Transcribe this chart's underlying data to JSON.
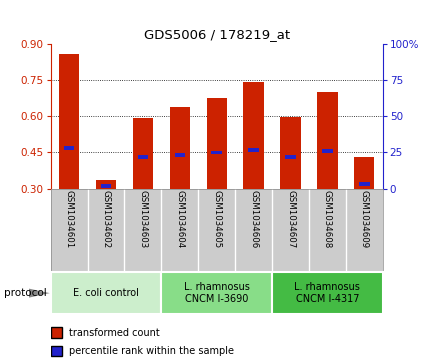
{
  "title": "GDS5006 / 178219_at",
  "samples": [
    "GSM1034601",
    "GSM1034602",
    "GSM1034603",
    "GSM1034604",
    "GSM1034605",
    "GSM1034606",
    "GSM1034607",
    "GSM1034608",
    "GSM1034609"
  ],
  "red_values": [
    0.855,
    0.338,
    0.592,
    0.637,
    0.675,
    0.743,
    0.597,
    0.7,
    0.432
  ],
  "blue_values": [
    0.47,
    0.312,
    0.43,
    0.44,
    0.45,
    0.46,
    0.43,
    0.455,
    0.32
  ],
  "baseline": 0.3,
  "ylim_left": [
    0.3,
    0.9
  ],
  "ylim_right": [
    0,
    100
  ],
  "yticks_left": [
    0.3,
    0.45,
    0.6,
    0.75,
    0.9
  ],
  "yticks_right": [
    0,
    25,
    50,
    75,
    100
  ],
  "left_color": "#cc2200",
  "right_color": "#2222cc",
  "bar_color": "#cc2200",
  "blue_color": "#2222cc",
  "protocol_groups": [
    {
      "label": "E. coli control",
      "indices": [
        0,
        1,
        2
      ],
      "color": "#cceecc"
    },
    {
      "label": "L. rhamnosus\nCNCM I-3690",
      "indices": [
        3,
        4,
        5
      ],
      "color": "#88dd88"
    },
    {
      "label": "L. rhamnosus\nCNCM I-4317",
      "indices": [
        6,
        7,
        8
      ],
      "color": "#44bb44"
    }
  ],
  "protocol_label": "protocol",
  "legend_red": "transformed count",
  "legend_blue": "percentile rank within the sample",
  "label_area_bg": "#cccccc",
  "sample_sep_color": "#aaaaaa"
}
